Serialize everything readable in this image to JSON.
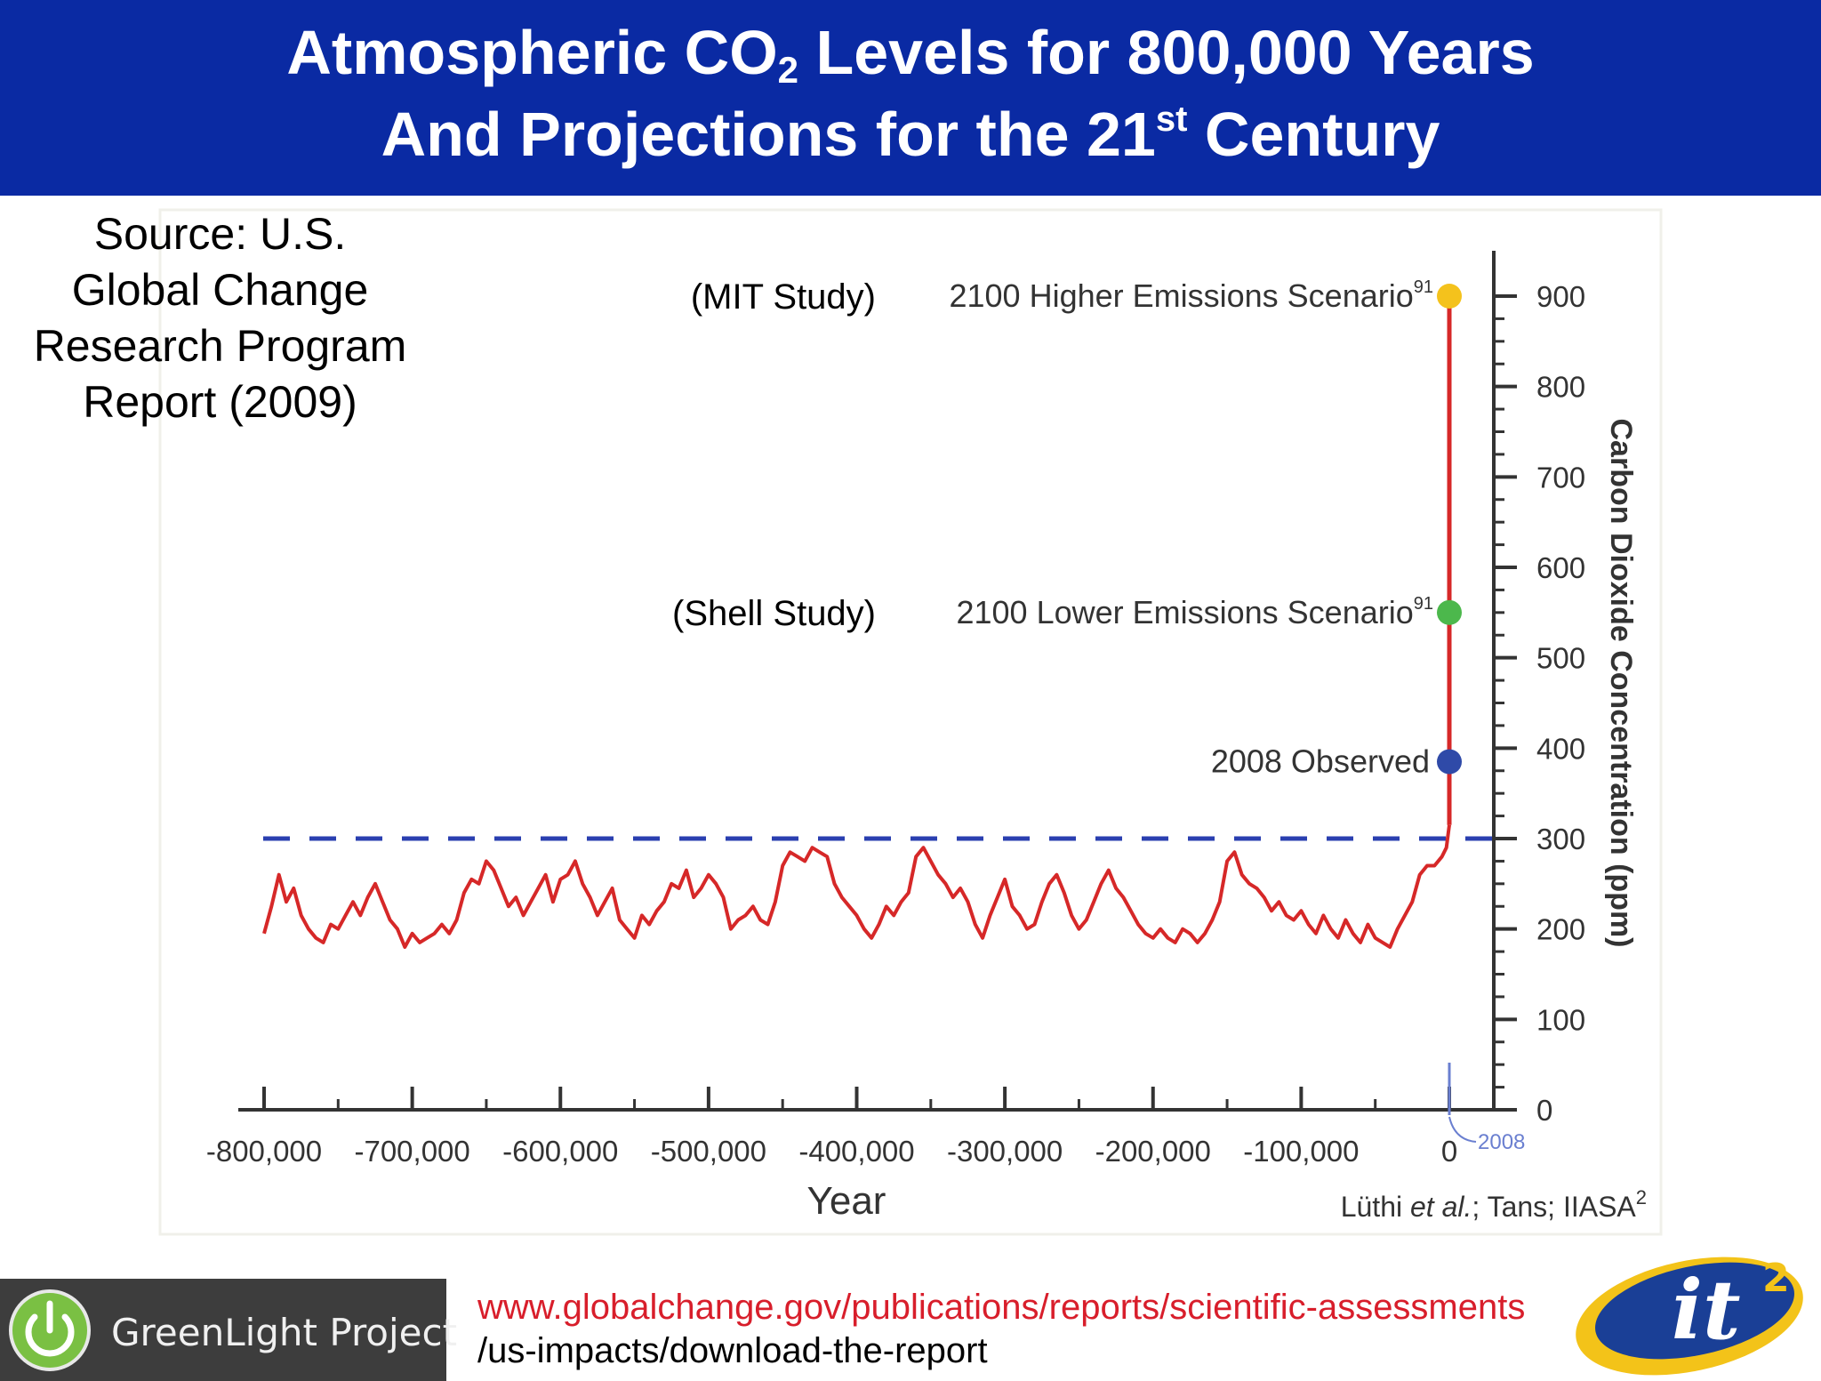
{
  "title": {
    "line1_before": "Atmospheric CO",
    "line1_sub": "2",
    "line1_after": " Levels for 800,000 Years",
    "line2_before": "And Projections for the 21",
    "line2_sup": "st",
    "line2_after": " Century"
  },
  "source": {
    "line1": "Source: U.S.",
    "line2": "Global Change",
    "line3": "Research Program",
    "line4": "Report (2009)"
  },
  "chart_data": {
    "type": "line",
    "xlabel": "Year",
    "ylabel": "Carbon Dioxide Concentration (ppm)",
    "xlim": [
      -800000,
      0
    ],
    "ylim": [
      0,
      900
    ],
    "x_ticks": [
      -800000,
      -700000,
      -600000,
      -500000,
      -400000,
      -300000,
      -200000,
      -100000,
      0
    ],
    "x_tick_labels": [
      "-800,000",
      "-700,000",
      "-600,000",
      "-500,000",
      "-400,000",
      "-300,000",
      "-200,000",
      "-100,000",
      "0"
    ],
    "y_ticks": [
      0,
      100,
      200,
      300,
      400,
      500,
      600,
      700,
      800,
      900
    ],
    "y_tick_labels": [
      "0",
      "100",
      "200",
      "300",
      "400",
      "500",
      "600",
      "700",
      "800",
      "900"
    ],
    "y_axis_side": "right",
    "grid": false,
    "reference_line": {
      "y": 300,
      "style": "dashed",
      "color": "#2a3fb0"
    },
    "series": [
      {
        "color": "#d62828",
        "x": [
          -800000,
          -795000,
          -790000,
          -785000,
          -780000,
          -775000,
          -770000,
          -765000,
          -760000,
          -755000,
          -750000,
          -745000,
          -740000,
          -735000,
          -730000,
          -725000,
          -720000,
          -715000,
          -710000,
          -705000,
          -700000,
          -695000,
          -690000,
          -685000,
          -680000,
          -675000,
          -670000,
          -665000,
          -660000,
          -655000,
          -650000,
          -645000,
          -640000,
          -635000,
          -630000,
          -625000,
          -620000,
          -615000,
          -610000,
          -605000,
          -600000,
          -595000,
          -590000,
          -585000,
          -580000,
          -575000,
          -570000,
          -565000,
          -560000,
          -555000,
          -550000,
          -545000,
          -540000,
          -535000,
          -530000,
          -525000,
          -520000,
          -515000,
          -510000,
          -505000,
          -500000,
          -495000,
          -490000,
          -485000,
          -480000,
          -475000,
          -470000,
          -465000,
          -460000,
          -455000,
          -450000,
          -445000,
          -440000,
          -435000,
          -430000,
          -425000,
          -420000,
          -415000,
          -410000,
          -405000,
          -400000,
          -395000,
          -390000,
          -385000,
          -380000,
          -375000,
          -370000,
          -365000,
          -360000,
          -355000,
          -350000,
          -345000,
          -340000,
          -335000,
          -330000,
          -325000,
          -320000,
          -315000,
          -310000,
          -305000,
          -300000,
          -295000,
          -290000,
          -285000,
          -280000,
          -275000,
          -270000,
          -265000,
          -260000,
          -255000,
          -250000,
          -245000,
          -240000,
          -235000,
          -230000,
          -225000,
          -220000,
          -215000,
          -210000,
          -205000,
          -200000,
          -195000,
          -190000,
          -185000,
          -180000,
          -175000,
          -170000,
          -165000,
          -160000,
          -155000,
          -150000,
          -145000,
          -140000,
          -135000,
          -130000,
          -125000,
          -120000,
          -115000,
          -110000,
          -105000,
          -100000,
          -95000,
          -90000,
          -85000,
          -80000,
          -75000,
          -70000,
          -65000,
          -60000,
          -55000,
          -50000,
          -45000,
          -40000,
          -35000,
          -30000,
          -25000,
          -20000,
          -15000,
          -10000,
          -5000,
          -2000,
          0
        ],
        "y": [
          195,
          225,
          260,
          230,
          245,
          215,
          200,
          190,
          185,
          205,
          200,
          215,
          230,
          215,
          235,
          250,
          230,
          210,
          200,
          180,
          195,
          185,
          190,
          195,
          205,
          195,
          210,
          240,
          255,
          250,
          275,
          265,
          245,
          225,
          235,
          215,
          230,
          245,
          260,
          230,
          255,
          260,
          275,
          250,
          235,
          215,
          230,
          245,
          210,
          200,
          190,
          215,
          205,
          220,
          230,
          250,
          245,
          265,
          235,
          245,
          260,
          250,
          235,
          200,
          210,
          215,
          225,
          210,
          205,
          230,
          270,
          285,
          280,
          275,
          290,
          285,
          280,
          250,
          235,
          225,
          215,
          200,
          190,
          205,
          225,
          215,
          230,
          240,
          280,
          290,
          275,
          260,
          250,
          235,
          245,
          230,
          205,
          190,
          215,
          235,
          255,
          225,
          215,
          200,
          205,
          230,
          250,
          260,
          240,
          215,
          200,
          210,
          230,
          250,
          265,
          245,
          235,
          220,
          205,
          195,
          190,
          200,
          190,
          185,
          200,
          195,
          185,
          195,
          210,
          230,
          275,
          285,
          260,
          250,
          245,
          235,
          220,
          230,
          215,
          210,
          220,
          205,
          195,
          215,
          200,
          190,
          210,
          195,
          185,
          205,
          190,
          185,
          180,
          200,
          215,
          230,
          260,
          270,
          270,
          280,
          290,
          315
        ],
        "values_note_hidden": ""
      }
    ],
    "points": [
      {
        "label": "2008 Observed",
        "x": 0,
        "y": 385,
        "color": "#2f4aa8"
      },
      {
        "label": "2100 Lower Emissions Scenario",
        "superscript": "91",
        "study": "(Shell Study)",
        "x": 0,
        "y": 550,
        "color": "#4cb84c"
      },
      {
        "label": "2100 Higher Emissions Scenario",
        "superscript": "91",
        "study": "(MIT Study)",
        "x": 0,
        "y": 900,
        "color": "#f4c21c"
      }
    ],
    "x_marker": {
      "label": "2008",
      "x": 0
    },
    "credit": {
      "prefix": "Lüthi ",
      "etal": "et al.",
      "suffix": "; Tans; IIASA",
      "sup": "2"
    }
  },
  "footer": {
    "logo_text": "GreenLight Project",
    "url_line1": "www.globalchange.gov/publications/reports/scientific-assessments",
    "url_line2": "/us-impacts/download-the-report",
    "it2_logo_text": "it",
    "it2_logo_sup": "2"
  },
  "colors": {
    "title_bar": "#0a2aa3",
    "co2_line": "#d62828",
    "url": "#d81e2b"
  }
}
